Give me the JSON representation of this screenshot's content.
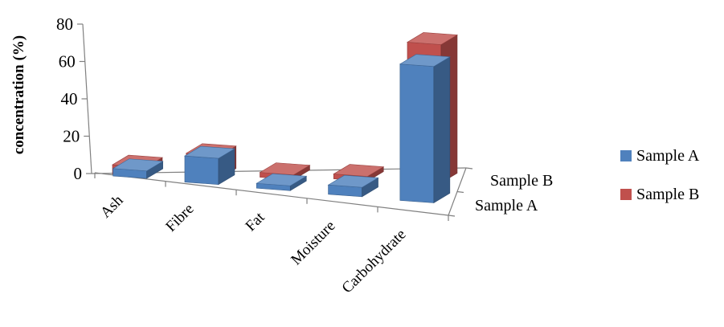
{
  "chart_data": {
    "type": "bar",
    "title": "",
    "xlabel": "",
    "ylabel": "concentration (%)",
    "ylim": [
      0,
      80
    ],
    "yticks": [
      0,
      20,
      40,
      60,
      80
    ],
    "categories": [
      "Ash",
      "Fibre",
      "Fat",
      "Moisture",
      "Carbohydrate"
    ],
    "depth_labels": [
      "Sample B",
      "Sample A"
    ],
    "series": [
      {
        "name": "Sample A",
        "color": "#4F81BD",
        "values": [
          4,
          14,
          2,
          5,
          73
        ]
      },
      {
        "name": "Sample B",
        "color": "#C0504D",
        "values": [
          5,
          12,
          2,
          2,
          74
        ]
      }
    ],
    "grid": false,
    "legend_position": "right"
  }
}
